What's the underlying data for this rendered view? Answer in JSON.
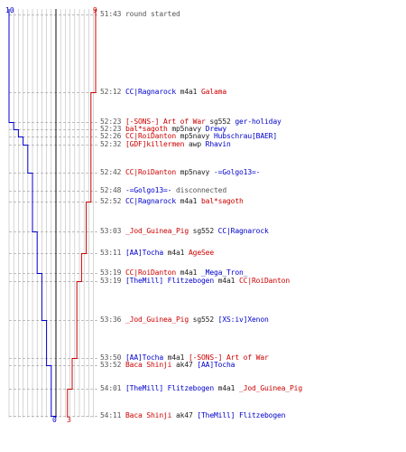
{
  "colors": {
    "blue": "#0000cc",
    "red": "#cc0000",
    "grid": "#bbbbbb",
    "dash": "#aaaaaa",
    "center": "#333333",
    "text_gray": "#555555"
  },
  "scores": {
    "blue_start": "10",
    "red_start": "9",
    "blue_end": "0",
    "red_end": "3"
  },
  "events": [
    {
      "time": "51:43",
      "text": "round started",
      "type": "info"
    },
    {
      "time": "52:12",
      "attacker": "CC|Ragnarock",
      "attacker_team": "blue",
      "weapon": "m4a1",
      "victim": "Galama",
      "victim_team": "red"
    },
    {
      "time": "52:23",
      "attacker": "[-SONS-] Art of War",
      "attacker_team": "red",
      "weapon": "sg552",
      "victim": "ger-holiday",
      "victim_team": "blue"
    },
    {
      "time": "52:23",
      "attacker": "bal*sagoth",
      "attacker_team": "red",
      "weapon": "mp5navy",
      "victim": "Drewy",
      "victim_team": "blue"
    },
    {
      "time": "52:26",
      "attacker": "CC|RoiDanton",
      "attacker_team": "red",
      "weapon": "mp5navy",
      "victim": "Hubschrau[BAER]",
      "victim_team": "blue"
    },
    {
      "time": "52:32",
      "attacker": "[GDF]killermen",
      "attacker_team": "red",
      "weapon": "awp",
      "victim": "Rhavin",
      "victim_team": "blue"
    },
    {
      "time": "52:42",
      "attacker": "CC|RoiDanton",
      "attacker_team": "red",
      "weapon": "mp5navy",
      "victim": "-=Golgo13=-",
      "victim_team": "blue"
    },
    {
      "time": "52:48",
      "player": "-=Golgo13=-",
      "player_team": "blue",
      "text": "disconnected",
      "type": "disconnect"
    },
    {
      "time": "52:52",
      "attacker": "CC|Ragnarock",
      "attacker_team": "blue",
      "weapon": "m4a1",
      "victim": "bal*sagoth",
      "victim_team": "red"
    },
    {
      "time": "53:03",
      "attacker": "_Jod_Guinea_Pig",
      "attacker_team": "red",
      "weapon": "sg552",
      "victim": "CC|Ragnarock",
      "victim_team": "blue"
    },
    {
      "time": "53:11",
      "attacker": "[AA]Tocha",
      "attacker_team": "blue",
      "weapon": "m4a1",
      "victim": "AgeSee",
      "victim_team": "red"
    },
    {
      "time": "53:19",
      "attacker": "CC|RoiDanton",
      "attacker_team": "red",
      "weapon": "m4a1",
      "victim": "_Mega_Tron_",
      "victim_team": "blue"
    },
    {
      "time": "53:19",
      "attacker": "[TheMill] Flitzebogen",
      "attacker_team": "blue",
      "weapon": "m4a1",
      "victim": "CC|RoiDanton",
      "victim_team": "red"
    },
    {
      "time": "53:36",
      "attacker": "_Jod_Guinea_Pig",
      "attacker_team": "red",
      "weapon": "sg552",
      "victim": "[XS:iv]Xenon",
      "victim_team": "blue"
    },
    {
      "time": "53:50",
      "attacker": "[AA]Tocha",
      "attacker_team": "blue",
      "weapon": "m4a1",
      "victim": "[-SONS-] Art of War",
      "victim_team": "red"
    },
    {
      "time": "53:52",
      "attacker": "Baca Shinji",
      "attacker_team": "red",
      "weapon": "ak47",
      "victim": "[AA]Tocha",
      "victim_team": "blue"
    },
    {
      "time": "54:01",
      "attacker": "[TheMill] Flitzebogen",
      "attacker_team": "blue",
      "weapon": "m4a1",
      "victim": "_Jod_Guinea_Pig",
      "victim_team": "red"
    },
    {
      "time": "54:11",
      "attacker": "Baca Shinji",
      "attacker_team": "red",
      "weapon": "ak47",
      "victim": "[TheMill] Flitzebogen",
      "victim_team": "blue"
    }
  ],
  "blue_steps": [
    10,
    10,
    9,
    8,
    7,
    6,
    5,
    5,
    5,
    4,
    4,
    3,
    3,
    2,
    2,
    1,
    1,
    0
  ],
  "red_steps": [
    9,
    8,
    8,
    8,
    8,
    8,
    8,
    8,
    7,
    7,
    6,
    6,
    5,
    5,
    4,
    4,
    3,
    3
  ]
}
